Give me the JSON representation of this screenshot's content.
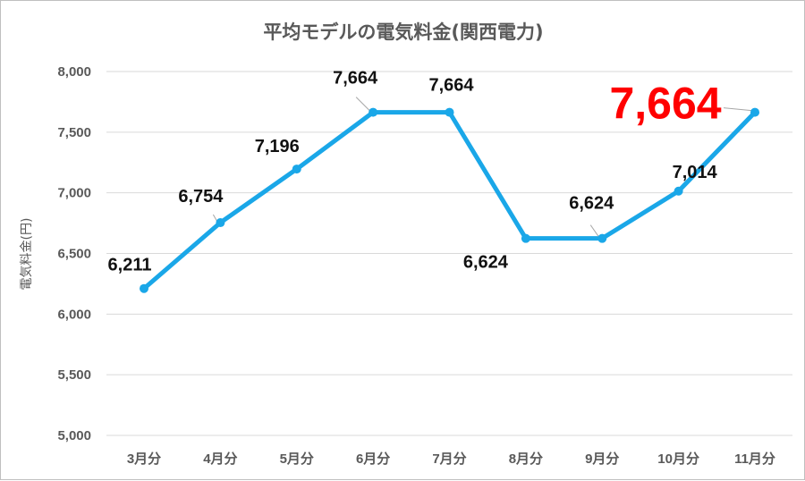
{
  "chart_data": {
    "type": "line",
    "title": "平均モデルの電気料金(関西電力)",
    "ylabel": "電気料金(円)",
    "xlabel": "",
    "ylim": [
      5000,
      8000
    ],
    "ytick_step": 500,
    "grid": true,
    "categories": [
      "3月分",
      "4月分",
      "5月分",
      "6月分",
      "7月分",
      "8月分",
      "9月分",
      "10月分",
      "11月分"
    ],
    "series": [
      {
        "values": [
          6211,
          6754,
          7196,
          7664,
          7664,
          6624,
          6624,
          7014,
          7664
        ],
        "labels": [
          "6,211",
          "6,754",
          "7,196",
          "7,664",
          "7,664",
          "6,624",
          "6,624",
          "7,014",
          "7,664"
        ],
        "color": "#1aa7e8"
      }
    ],
    "highlight": {
      "index": 8,
      "color": "#ff0000"
    }
  }
}
